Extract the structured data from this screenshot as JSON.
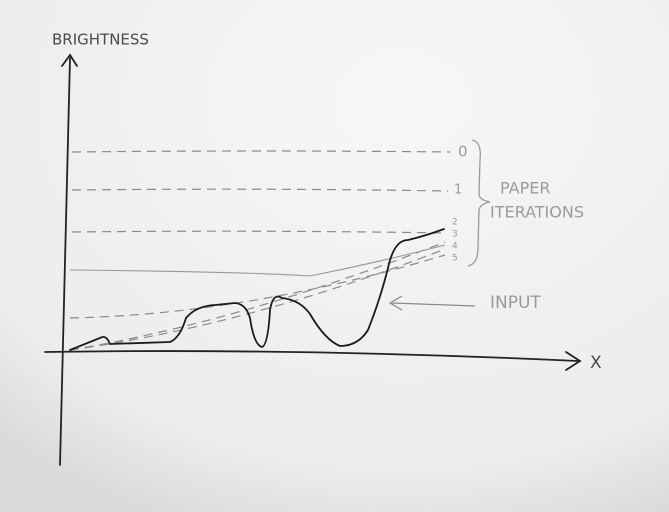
{
  "y_axis_label": "BRIGHTNESS",
  "x_axis_label": "X",
  "iterations": {
    "labels": [
      "0",
      "1",
      "2",
      "3",
      "4",
      "5"
    ],
    "title_lines": [
      "PAPER",
      "ITERATIONS"
    ]
  },
  "input_label": "INPUT"
}
